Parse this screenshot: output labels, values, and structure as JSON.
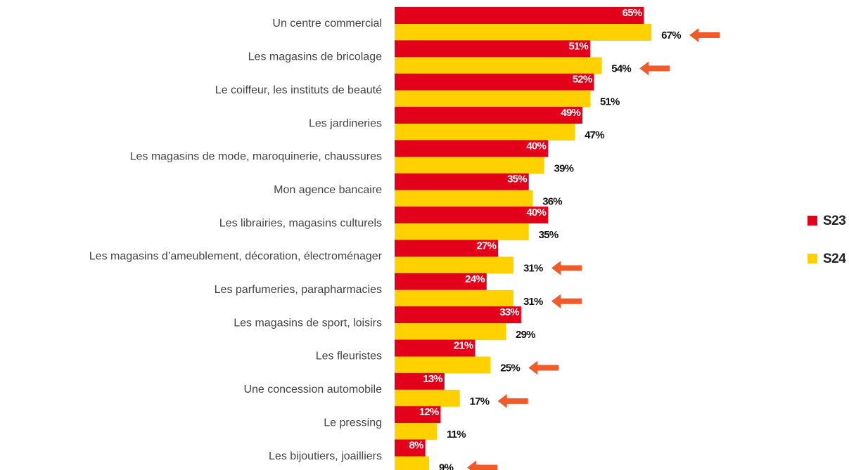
{
  "chart_data": {
    "type": "bar",
    "orientation": "horizontal",
    "categories": [
      "Un centre commercial",
      "Les magasins de bricolage",
      "Le coiffeur, les instituts de beauté",
      "Les jardineries",
      "Les magasins de mode, maroquinerie, chaussures",
      "Mon agence bancaire",
      "Les librairies, magasins culturels",
      "Les magasins d’ameublement, décoration, électroménager",
      "Les parfumeries, parapharmacies",
      "Les magasins de sport, loisirs",
      "Les fleuristes",
      "Une concession automobile",
      "Le pressing",
      "Les bijoutiers, joailliers"
    ],
    "series": [
      {
        "name": "S23",
        "color": "#e2001a",
        "values": [
          65,
          51,
          52,
          49,
          40,
          35,
          40,
          27,
          24,
          33,
          21,
          13,
          12,
          8
        ],
        "value_labels": [
          "65%",
          "51%",
          "52%",
          "49%",
          "40%",
          "35%",
          "40%",
          "27%",
          "24%",
          "33%",
          "21%",
          "13%",
          "12%",
          "8%"
        ]
      },
      {
        "name": "S24",
        "color": "#ffd100",
        "values": [
          67,
          54,
          51,
          47,
          39,
          36,
          35,
          31,
          31,
          29,
          25,
          17,
          11,
          9
        ],
        "value_labels": [
          "67%",
          "54%",
          "51%",
          "47%",
          "39%",
          "36%",
          "35%",
          "31%",
          "31%",
          "29%",
          "25%",
          "17%",
          "11%",
          "9%"
        ],
        "highlight": [
          true,
          true,
          false,
          false,
          false,
          false,
          false,
          true,
          true,
          false,
          true,
          true,
          false,
          true
        ],
        "highlight_color": "#f15a29"
      }
    ],
    "xlim": [
      0,
      100
    ]
  }
}
